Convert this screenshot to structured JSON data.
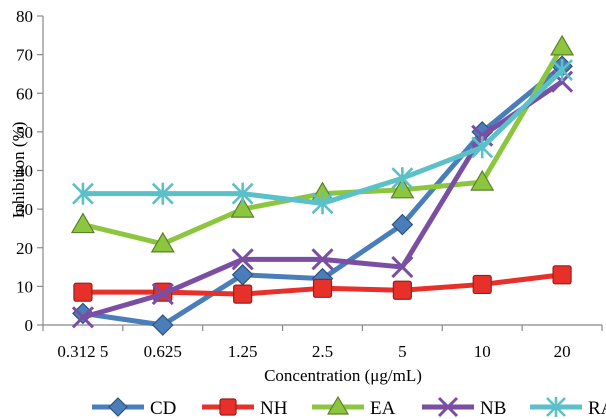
{
  "chart_data": {
    "type": "line",
    "title": "",
    "xlabel": "Concentration (μg/mL)",
    "ylabel": "Inhibition (%)",
    "ylim": [
      0,
      80
    ],
    "yticks": [
      0,
      10,
      20,
      30,
      40,
      50,
      60,
      70,
      80
    ],
    "categories": [
      "0.312 5",
      "0.625",
      "1.25",
      "2.5",
      "5",
      "10",
      "20"
    ],
    "grid": false,
    "legend_position": "bottom",
    "series": [
      {
        "name": "CD",
        "values": [
          3,
          0,
          13,
          12,
          26,
          50,
          67
        ],
        "color": "#4a7ebb",
        "marker": "diamond"
      },
      {
        "name": "NH",
        "values": [
          8.5,
          8.5,
          8,
          9.5,
          9,
          10.5,
          13
        ],
        "color": "#e8302a",
        "marker": "square"
      },
      {
        "name": "EA",
        "values": [
          26,
          21,
          30,
          34,
          35,
          37,
          72
        ],
        "color": "#8cc63e",
        "marker": "triangle"
      },
      {
        "name": "NB",
        "values": [
          2,
          8,
          17,
          17,
          15,
          49,
          63
        ],
        "color": "#7a4ea3",
        "marker": "x"
      },
      {
        "name": "RA",
        "values": [
          34,
          34,
          34,
          31.5,
          38,
          46,
          66
        ],
        "color": "#5bc0c8",
        "marker": "star"
      }
    ]
  }
}
